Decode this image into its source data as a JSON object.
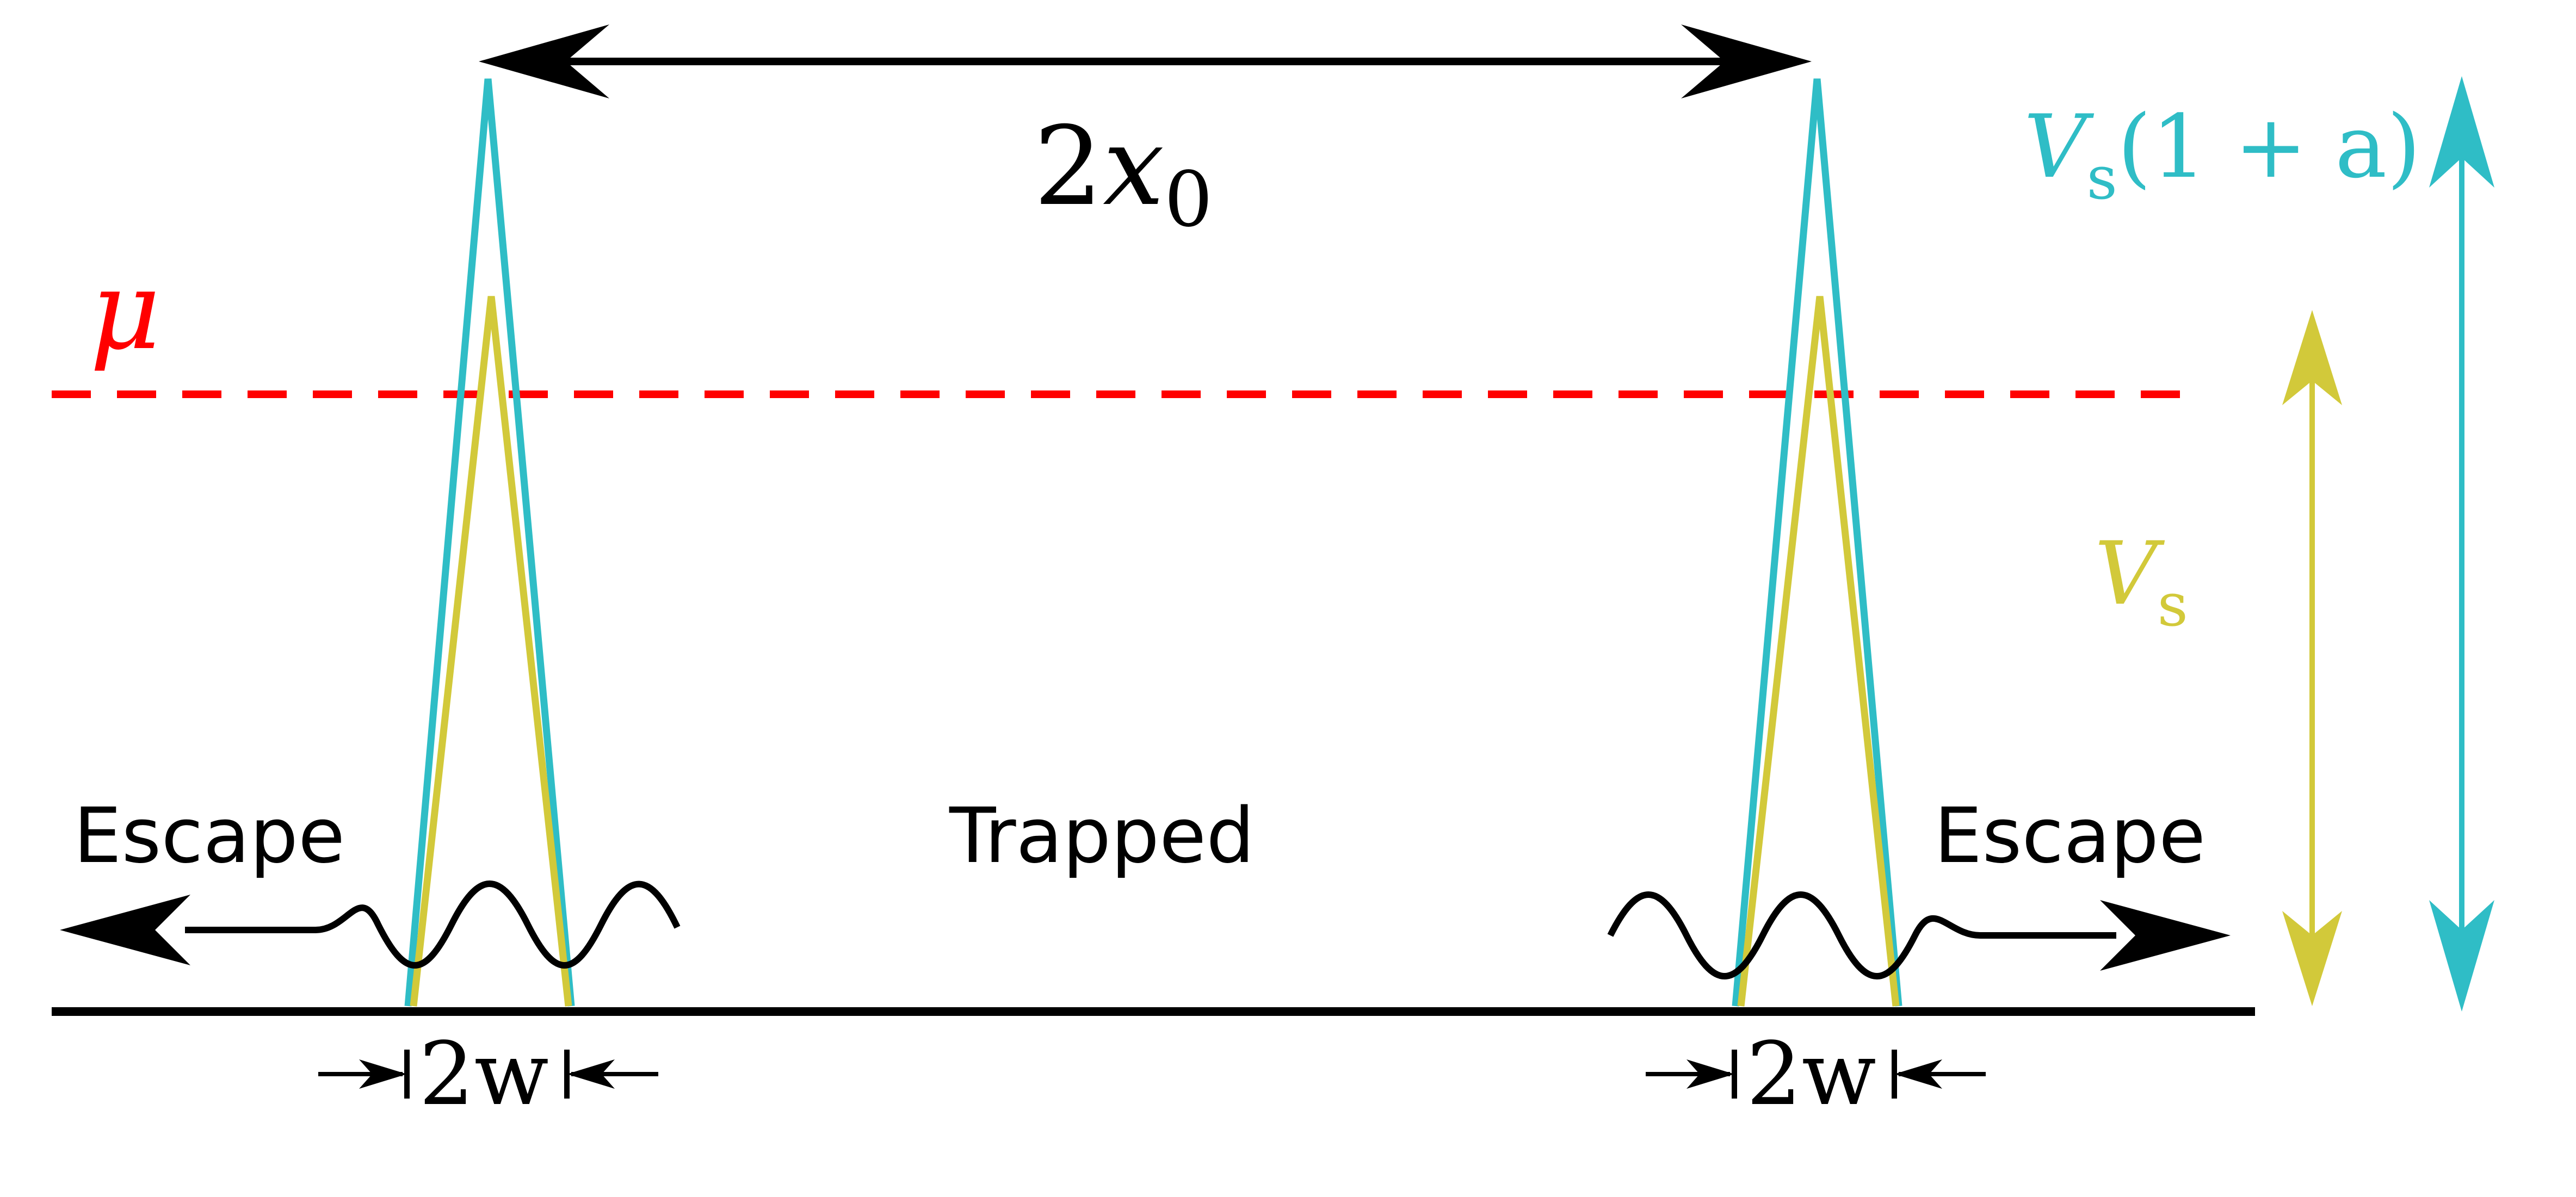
{
  "labels": {
    "separation": {
      "coef": "2",
      "var": "x",
      "sub": "0"
    },
    "mu": "μ",
    "v_high": {
      "var": "V",
      "sub": "s",
      "rest": "(1 + a)"
    },
    "v_low": {
      "var": "V",
      "sub": "s"
    },
    "escape_left": "Escape",
    "trapped": "Trapped",
    "escape_right": "Escape",
    "width_left": "2w",
    "width_right": "2w"
  },
  "colors": {
    "cyan": "#2fbdc6",
    "yellow": "#d2c93a",
    "red": "#ff0000",
    "black": "#000000"
  }
}
